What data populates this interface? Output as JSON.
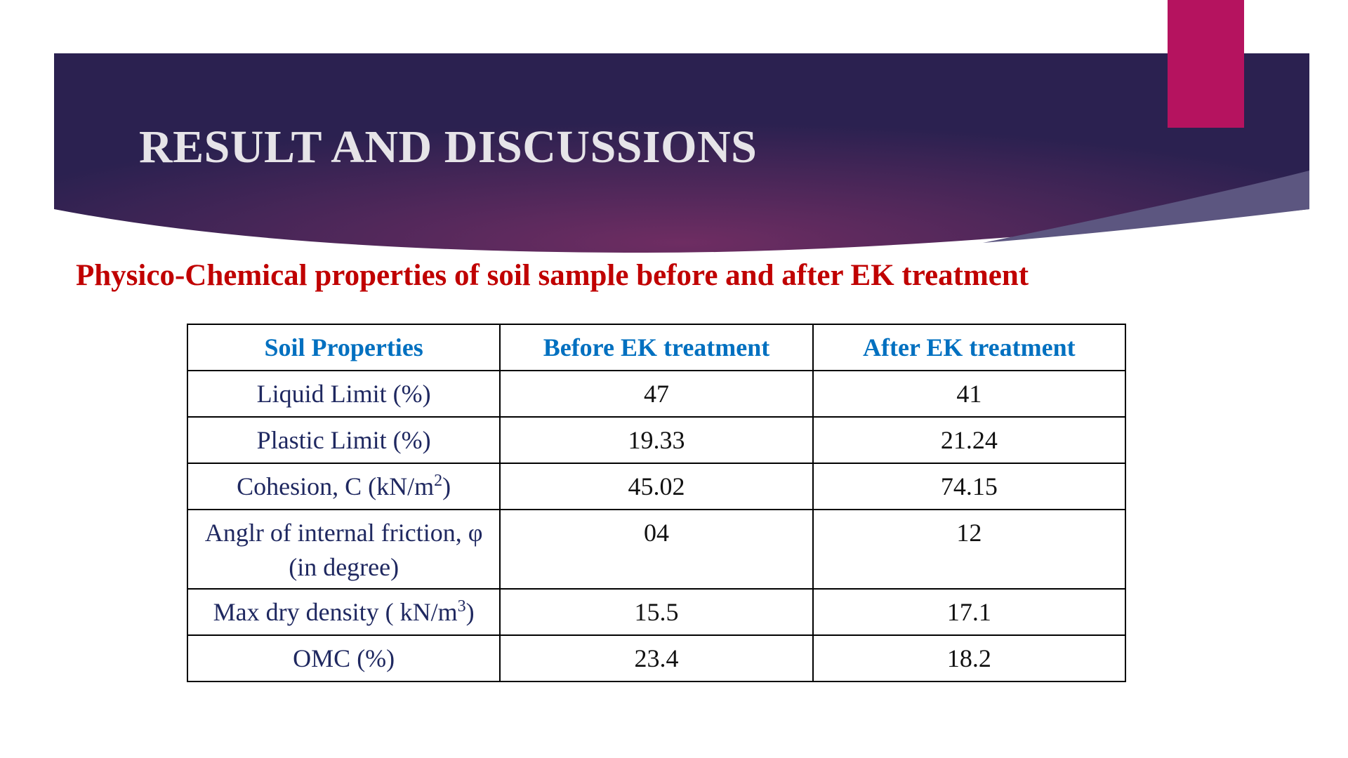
{
  "header": {
    "title": "RESULT AND DISCUSSIONS"
  },
  "subtitle": "Physico-Chemical properties of soil sample before and after EK treatment",
  "table": {
    "columns": [
      "Soil Properties",
      "Before EK treatment",
      "After EK treatment"
    ],
    "rows": [
      [
        {
          "text": "Liquid Limit (%)"
        },
        "47",
        "41"
      ],
      [
        {
          "text": "Plastic Limit (%)"
        },
        "19.33",
        "21.24"
      ],
      [
        {
          "text": "Cohesion, C (kN/m",
          "sup": "2",
          "after": ")"
        },
        "45.02",
        "74.15"
      ],
      [
        {
          "text": "Anglr of internal friction, φ (in degree)"
        },
        "04",
        "12"
      ],
      [
        {
          "text": "Max dry density ( kN/m",
          "sup": "3",
          "after": ")"
        },
        "15.5",
        "17.1"
      ],
      [
        {
          "text": "OMC (%)"
        },
        "23.4",
        "18.2"
      ]
    ]
  }
}
